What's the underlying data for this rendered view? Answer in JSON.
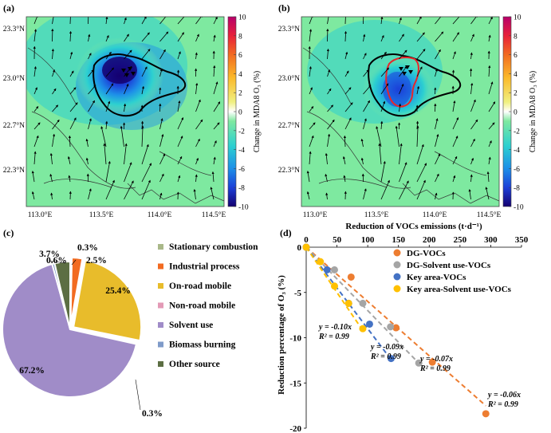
{
  "panels": {
    "a": {
      "label": "(a)",
      "lat_ticks": [
        "23.3°N",
        "23.0°N",
        "22.7°N",
        "22.3°N"
      ],
      "lon_ticks": [
        "113.0°E",
        "113.5°E",
        "114.0°E",
        "114.5°E"
      ],
      "colorbar": {
        "ticks": [
          "10",
          "8",
          "6",
          "4",
          "2",
          "0",
          "-2",
          "-4",
          "-6",
          "-8",
          "-10"
        ],
        "label": "Change in MDA8 O₃ (%)"
      }
    },
    "b": {
      "label": "(b)",
      "lat_ticks": [
        "23.3°N",
        "23.0°N",
        "22.7°N",
        "22.3°N"
      ],
      "lon_ticks": [
        "113.0°E",
        "113.5°E",
        "114.0°E",
        "114.5°E"
      ],
      "colorbar": {
        "ticks": [
          "10",
          "8",
          "6",
          "4",
          "2",
          "0",
          "-2",
          "-4",
          "-6",
          "-8",
          "-10"
        ],
        "label": "Change in MDA8 O₃ (%)"
      }
    },
    "c": {
      "label": "(c)"
    },
    "d": {
      "label": "(d)"
    }
  },
  "colors": {
    "map_bg": "#7ee9a0",
    "key_area_outline": "#e8262a",
    "dg_outline": "#000000"
  },
  "chart_data": [
    {
      "type": "pie",
      "panel": "c",
      "slices": [
        {
          "name": "Stationary combustion",
          "value": 0.3,
          "label": "0.3%",
          "color": "#a9b889"
        },
        {
          "name": "Industrial process",
          "value": 2.5,
          "label": "2.5%",
          "color": "#f26b21"
        },
        {
          "name": "On-road mobile",
          "value": 25.4,
          "label": "25.4%",
          "color": "#e8bc2b"
        },
        {
          "name": "Non-road mobile",
          "value": 0.3,
          "label": "0.3%",
          "color": "#e39ab6"
        },
        {
          "name": "Solvent use",
          "value": 67.2,
          "label": "67.2%",
          "color": "#a08cc8"
        },
        {
          "name": "Biomass burning",
          "value": 0.6,
          "label": "0.6%",
          "color": "#7f9bc9"
        },
        {
          "name": "Other source",
          "value": 3.7,
          "label": "3.7%",
          "color": "#5c6e43"
        }
      ]
    },
    {
      "type": "scatter",
      "panel": "d",
      "title": "Reduction of VOCs emissions (t·d⁻¹)",
      "ylabel": "Reduction percentage of O₃ (%)",
      "xlim": [
        0,
        350
      ],
      "ylim": [
        -20,
        0
      ],
      "x_ticks": [
        "0",
        "50",
        "100",
        "150",
        "200",
        "250",
        "300",
        "350"
      ],
      "y_ticks": [
        "0",
        "-5",
        "-10",
        "-15",
        "-20"
      ],
      "x_tick_values": [
        0,
        50,
        100,
        150,
        200,
        250,
        300,
        350
      ],
      "y_tick_values": [
        0,
        -5,
        -10,
        -15,
        -20
      ],
      "series": [
        {
          "name": "DG-VOCs",
          "color": "#ed7d31",
          "x": [
            0,
            73,
            146,
            205,
            292
          ],
          "y": [
            0,
            -3.3,
            -8.9,
            -12.7,
            -18.4
          ],
          "slope": -0.06,
          "eq": "y = -0.06x",
          "r2": "R² = 0.99"
        },
        {
          "name": "DG-Solvent use-VOCs",
          "color": "#a5a5a5",
          "x": [
            0,
            46,
            92,
            137,
            183
          ],
          "y": [
            0,
            -2.5,
            -6.2,
            -8.8,
            -12.8
          ],
          "slope": -0.07,
          "eq": "y = -0.07x",
          "r2": "R² = 0.99"
        },
        {
          "name": "Key area-VOCs",
          "color": "#4472c4",
          "x": [
            0,
            34,
            69,
            103,
            138
          ],
          "y": [
            0,
            -2.5,
            -6.2,
            -8.5,
            -12.3
          ],
          "slope": -0.09,
          "eq": "y = -0.09x",
          "r2": "R² = 0.99"
        },
        {
          "name": "Key area-Solvent use-VOCs",
          "color": "#ffc000",
          "x": [
            0,
            23,
            46,
            69,
            92
          ],
          "y": [
            0,
            -1.6,
            -4.3,
            -6.2,
            -9.0
          ],
          "slope": -0.1,
          "eq": "y = -0.10x",
          "r2": "R² = 0.99"
        }
      ]
    }
  ]
}
